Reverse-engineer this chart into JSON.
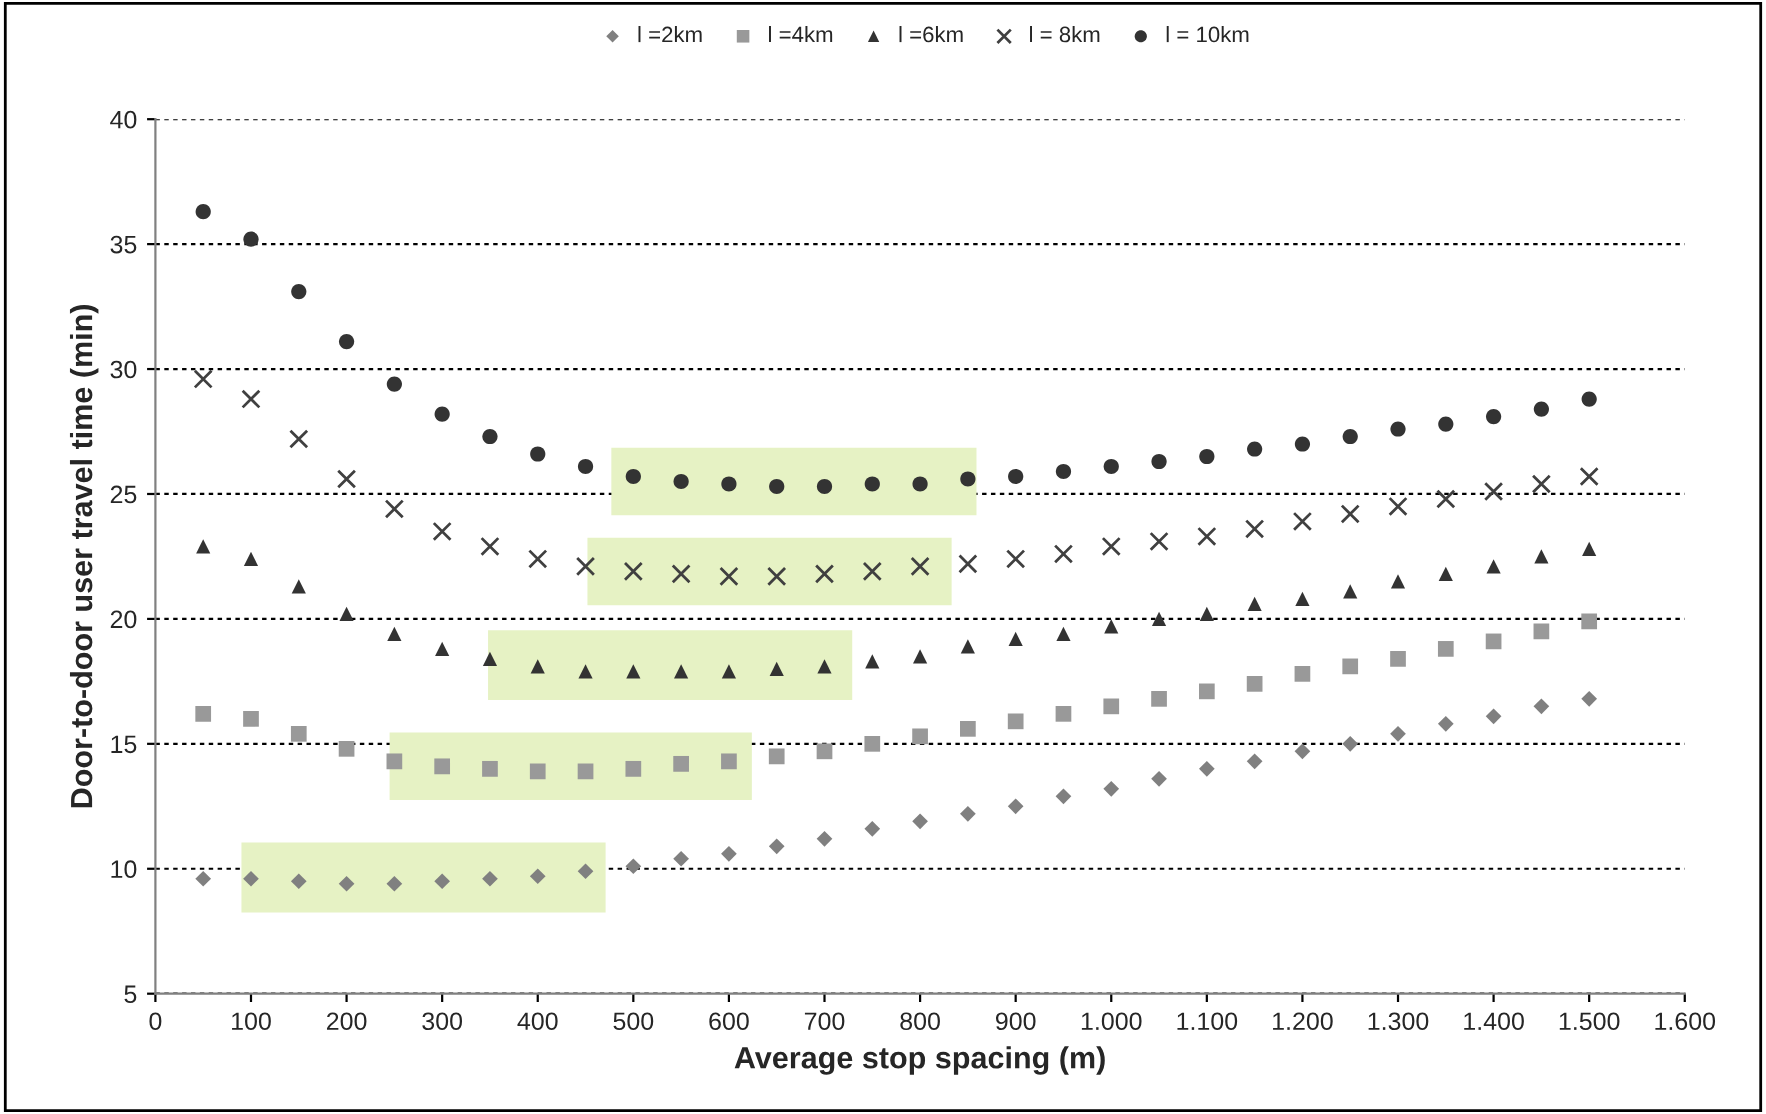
{
  "chart_data": {
    "type": "scatter",
    "xlabel": "Average stop spacing (m)",
    "ylabel": "Door-to-door user travel time (min)",
    "x": [
      50,
      100,
      150,
      200,
      250,
      300,
      350,
      400,
      450,
      500,
      550,
      600,
      650,
      700,
      750,
      800,
      850,
      900,
      950,
      1000,
      1050,
      1100,
      1150,
      1200,
      1250,
      1300,
      1350,
      1400,
      1450,
      1500
    ],
    "series": [
      {
        "name": "l =2km",
        "color": "#808080",
        "marker": "diamond",
        "values": [
          9.6,
          9.6,
          9.5,
          9.4,
          9.4,
          9.5,
          9.6,
          9.7,
          9.9,
          10.1,
          10.4,
          10.6,
          10.9,
          11.2,
          11.6,
          11.9,
          12.2,
          12.5,
          12.9,
          13.2,
          13.6,
          14.0,
          14.3,
          14.7,
          15.0,
          15.4,
          15.8,
          16.1,
          16.5,
          16.8
        ]
      },
      {
        "name": "l =4km",
        "color": "#999999",
        "marker": "square",
        "values": [
          16.2,
          16.0,
          15.4,
          14.8,
          14.3,
          14.1,
          14.0,
          13.9,
          13.9,
          14.0,
          14.2,
          14.3,
          14.5,
          14.7,
          15.0,
          15.3,
          15.6,
          15.9,
          16.2,
          16.5,
          16.8,
          17.1,
          17.4,
          17.8,
          18.1,
          18.4,
          18.8,
          19.1,
          19.5,
          19.9
        ]
      },
      {
        "name": "l =6km",
        "color": "#333333",
        "marker": "triangle",
        "values": [
          22.9,
          22.4,
          21.3,
          20.2,
          19.4,
          18.8,
          18.4,
          18.1,
          17.9,
          17.9,
          17.9,
          17.9,
          18.0,
          18.1,
          18.3,
          18.5,
          18.9,
          19.2,
          19.4,
          19.7,
          20.0,
          20.2,
          20.6,
          20.8,
          21.1,
          21.5,
          21.8,
          22.1,
          22.5,
          22.8
        ]
      },
      {
        "name": "l = 8km",
        "color": "#404040",
        "marker": "cross",
        "values": [
          29.6,
          28.8,
          27.2,
          25.6,
          24.4,
          23.5,
          22.9,
          22.4,
          22.1,
          21.9,
          21.8,
          21.7,
          21.7,
          21.8,
          21.9,
          22.1,
          22.2,
          22.4,
          22.6,
          22.9,
          23.1,
          23.3,
          23.6,
          23.9,
          24.2,
          24.5,
          24.8,
          25.1,
          25.4,
          25.7
        ]
      },
      {
        "name": "l = 10km",
        "color": "#333333",
        "marker": "circle",
        "values": [
          36.3,
          35.2,
          33.1,
          31.1,
          29.4,
          28.2,
          27.3,
          26.6,
          26.1,
          25.7,
          25.5,
          25.4,
          25.3,
          25.3,
          25.4,
          25.4,
          25.6,
          25.7,
          25.9,
          26.1,
          26.3,
          26.5,
          26.8,
          27.0,
          27.3,
          27.6,
          27.8,
          28.1,
          28.4,
          28.8
        ]
      }
    ],
    "bands": [
      {
        "axis": "x",
        "from": 90,
        "to": 471,
        "color": "#e6f2c4"
      },
      {
        "axis": "x",
        "from": 245,
        "to": 624,
        "color": "#e6f2c4"
      },
      {
        "axis": "x",
        "from": 348,
        "to": 729,
        "color": "#e6f2c4"
      },
      {
        "axis": "x",
        "from": 452,
        "to": 833,
        "color": "#e6f2c4"
      },
      {
        "axis": "x",
        "from": 477,
        "to": 859,
        "color": "#e6f2c4"
      }
    ],
    "xlim": [
      0,
      1600
    ],
    "xticks": [
      0,
      100,
      200,
      300,
      400,
      500,
      600,
      700,
      800,
      900,
      {
        "value": 1000,
        "label": "1.000"
      },
      {
        "value": 1100,
        "label": "1.100"
      },
      {
        "value": 1200,
        "label": "1.200"
      },
      {
        "value": 1300,
        "label": "1.300"
      },
      {
        "value": 1400,
        "label": "1.400"
      },
      {
        "value": 1500,
        "label": "1.500"
      },
      {
        "value": 1600,
        "label": "1.600"
      }
    ],
    "ylim": [
      5,
      40
    ],
    "yticks": [
      5,
      10,
      15,
      20,
      25,
      30,
      35,
      40
    ],
    "grid": "y",
    "legend": "top"
  }
}
